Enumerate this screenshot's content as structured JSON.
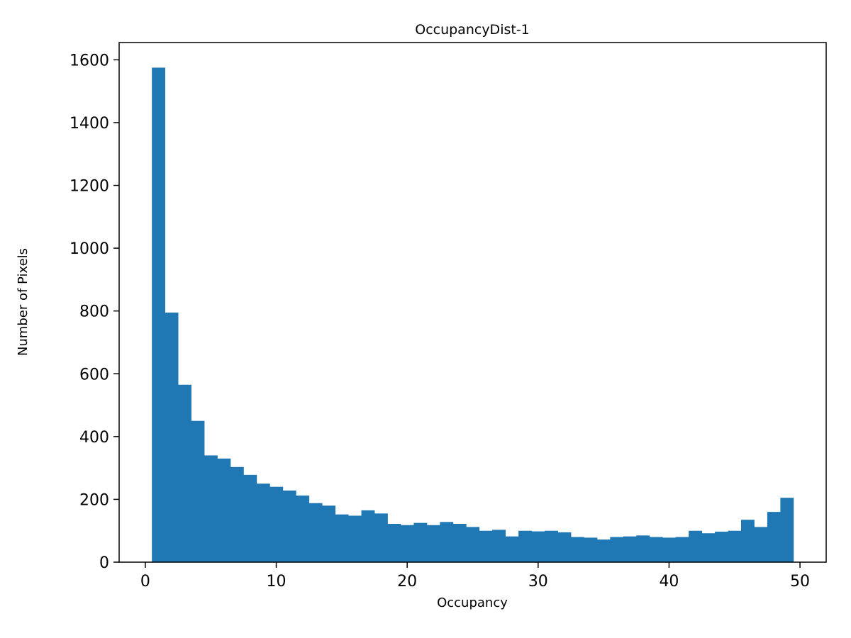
{
  "figure": {
    "title": "OccupancyDist-1",
    "xlabel": "Occupancy",
    "ylabel": "Number of Pixels"
  },
  "chart_data": {
    "type": "bar",
    "subtype": "histogram",
    "title": "OccupancyDist-1",
    "xlabel": "Occupancy",
    "ylabel": "Number of Pixels",
    "bar_color": "#1f77b4",
    "axis_color": "#000000",
    "grid": false,
    "bin_start": 0.5,
    "bin_width": 1,
    "counts": [
      1575,
      795,
      565,
      450,
      340,
      330,
      303,
      278,
      250,
      240,
      228,
      212,
      188,
      180,
      152,
      148,
      165,
      155,
      122,
      118,
      125,
      118,
      128,
      122,
      112,
      100,
      103,
      82,
      100,
      98,
      100,
      95,
      80,
      78,
      72,
      80,
      82,
      85,
      80,
      78,
      80,
      100,
      92,
      97,
      100,
      135,
      112,
      160,
      205
    ],
    "xlim": [
      -2,
      52
    ],
    "ylim": [
      0,
      1655
    ],
    "xticks": [
      0,
      10,
      20,
      30,
      40,
      50
    ],
    "yticks": [
      0,
      200,
      400,
      600,
      800,
      1000,
      1200,
      1400,
      1600
    ]
  }
}
